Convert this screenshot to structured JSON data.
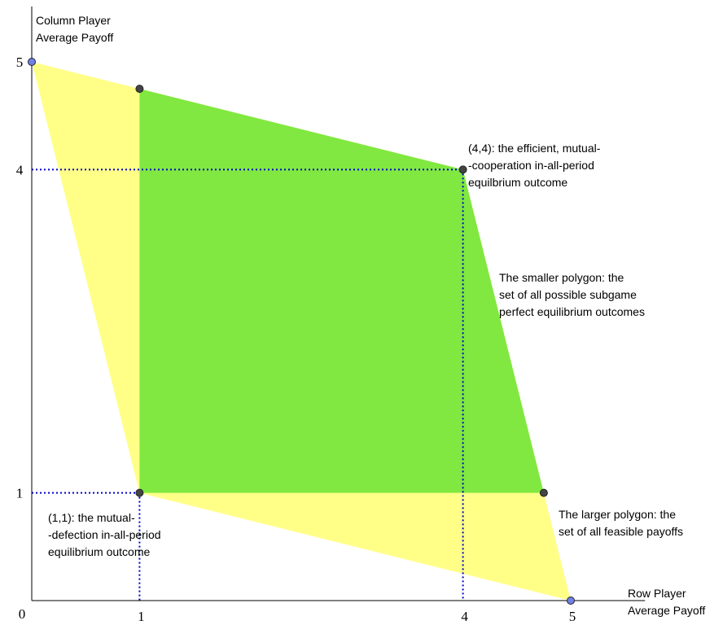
{
  "chart_data": {
    "type": "area",
    "title": "",
    "xlabel": "Row Player\nAverage Payoff",
    "ylabel": "Column Player\nAverage Payoff",
    "x_ticks": [
      "0",
      "1",
      "4",
      "5"
    ],
    "y_ticks": [
      "1",
      "4",
      "5"
    ],
    "tick_values_x": [
      0,
      1,
      4,
      5
    ],
    "tick_values_y": [
      1,
      4,
      5
    ],
    "xlim": [
      0,
      5.5
    ],
    "ylim": [
      -0.2,
      5.5
    ],
    "grid": false,
    "series": [
      {
        "name": "The larger polygon: the\nset of all feasible payoffs",
        "color": "#ffff88",
        "points": [
          [
            0,
            5
          ],
          [
            1,
            1
          ],
          [
            5,
            0
          ],
          [
            4,
            4
          ]
        ]
      },
      {
        "name": "The smaller polygon: the\nset of all possible subgame\nperfect equilibrium outcomes",
        "color": "#80e840",
        "points": [
          [
            1,
            4.75
          ],
          [
            4,
            4
          ],
          [
            4.75,
            1
          ],
          [
            1,
            1
          ]
        ]
      }
    ],
    "points": [
      {
        "x": 0,
        "y": 5,
        "color": "#7080e8"
      },
      {
        "x": 5,
        "y": 0,
        "color": "#7080e8"
      },
      {
        "x": 1,
        "y": 4.75,
        "color": "#444444"
      },
      {
        "x": 4,
        "y": 4,
        "color": "#444444"
      },
      {
        "x": 4.75,
        "y": 1,
        "color": "#444444"
      },
      {
        "x": 1,
        "y": 1,
        "color": "#444444"
      }
    ],
    "guides": [
      {
        "x": 4,
        "y": 4,
        "color": "#0000cc"
      },
      {
        "x": 1,
        "y": 1,
        "color": "#0000cc"
      }
    ],
    "annotations": [
      {
        "at": [
          4,
          4
        ],
        "text": "(4,4): the efficient, mutual-\n-cooperation in-all-period\nequilbrium outcome"
      },
      {
        "at": [
          1,
          1
        ],
        "text": "(1,1): the mutual-\n-defection in-all-period\nequilibrium outcome"
      }
    ]
  }
}
